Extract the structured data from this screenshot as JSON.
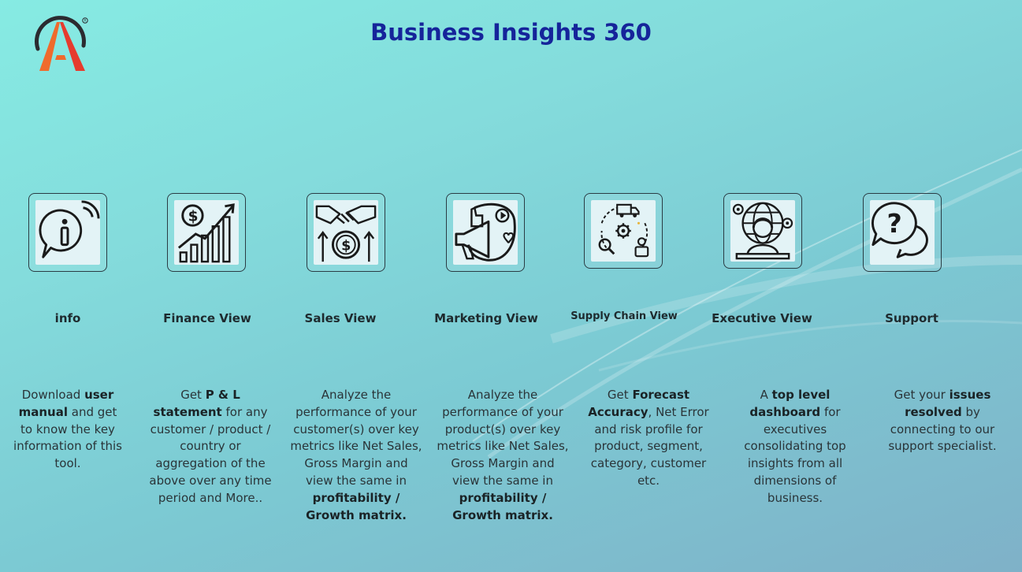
{
  "header": {
    "title": "Business Insights 360"
  },
  "cards": [
    {
      "label": "info",
      "icon": "info-chat-icon",
      "desc": [
        {
          "t": "Download ",
          "b": false
        },
        {
          "t": "user manual",
          "b": true
        },
        {
          "t": " and get to know the key information of this tool.",
          "b": false
        }
      ]
    },
    {
      "label": "Finance View",
      "icon": "finance-growth-chart-icon",
      "desc": [
        {
          "t": "Get  ",
          "b": false
        },
        {
          "t": "P & L statement",
          "b": true
        },
        {
          "t": " for any customer / product / country or aggregation of the above over any time period and More..",
          "b": false
        }
      ]
    },
    {
      "label": "Sales View",
      "icon": "handshake-dollar-icon",
      "desc": [
        {
          "t": "Analyze the performance of your customer(s) over key metrics like Net Sales, Gross Margin and view the same in ",
          "b": false
        },
        {
          "t": "profitability / Growth matrix.",
          "b": true
        }
      ]
    },
    {
      "label": "Marketing View",
      "icon": "megaphone-marketing-icon",
      "desc": [
        {
          "t": "Analyze the performance of your product(s) over key metrics like Net Sales, Gross Margin and view the same in ",
          "b": false
        },
        {
          "t": "profitability / Growth matrix.",
          "b": true
        }
      ]
    },
    {
      "label": "Supply Chain View",
      "icon": "supply-chain-gear-icon",
      "desc": [
        {
          "t": "Get ",
          "b": false
        },
        {
          "t": "Forecast Accuracy",
          "b": true
        },
        {
          "t": ", Net Error and risk profile for product, segment, category, customer etc.",
          "b": false
        }
      ]
    },
    {
      "label": "Executive View",
      "icon": "executive-globe-icon",
      "desc": [
        {
          "t": "A ",
          "b": false
        },
        {
          "t": "top level dashboard",
          "b": true
        },
        {
          "t": " for executives consolidating top insights from all dimensions of business.",
          "b": false
        }
      ]
    },
    {
      "label": "Support",
      "icon": "question-chat-icon",
      "desc": [
        {
          "t": "Get your ",
          "b": false
        },
        {
          "t": "issues resolved",
          "b": true
        },
        {
          "t": " by connecting to our support specialist.",
          "b": false
        }
      ]
    }
  ],
  "colors": {
    "title": "#15249a",
    "logo_orange": "#ef6b2c",
    "logo_red": "#e63b2e",
    "logo_ring": "#2b2b30",
    "icon_line": "#1a1a1a",
    "tile_bg": "#e3f3f6"
  }
}
